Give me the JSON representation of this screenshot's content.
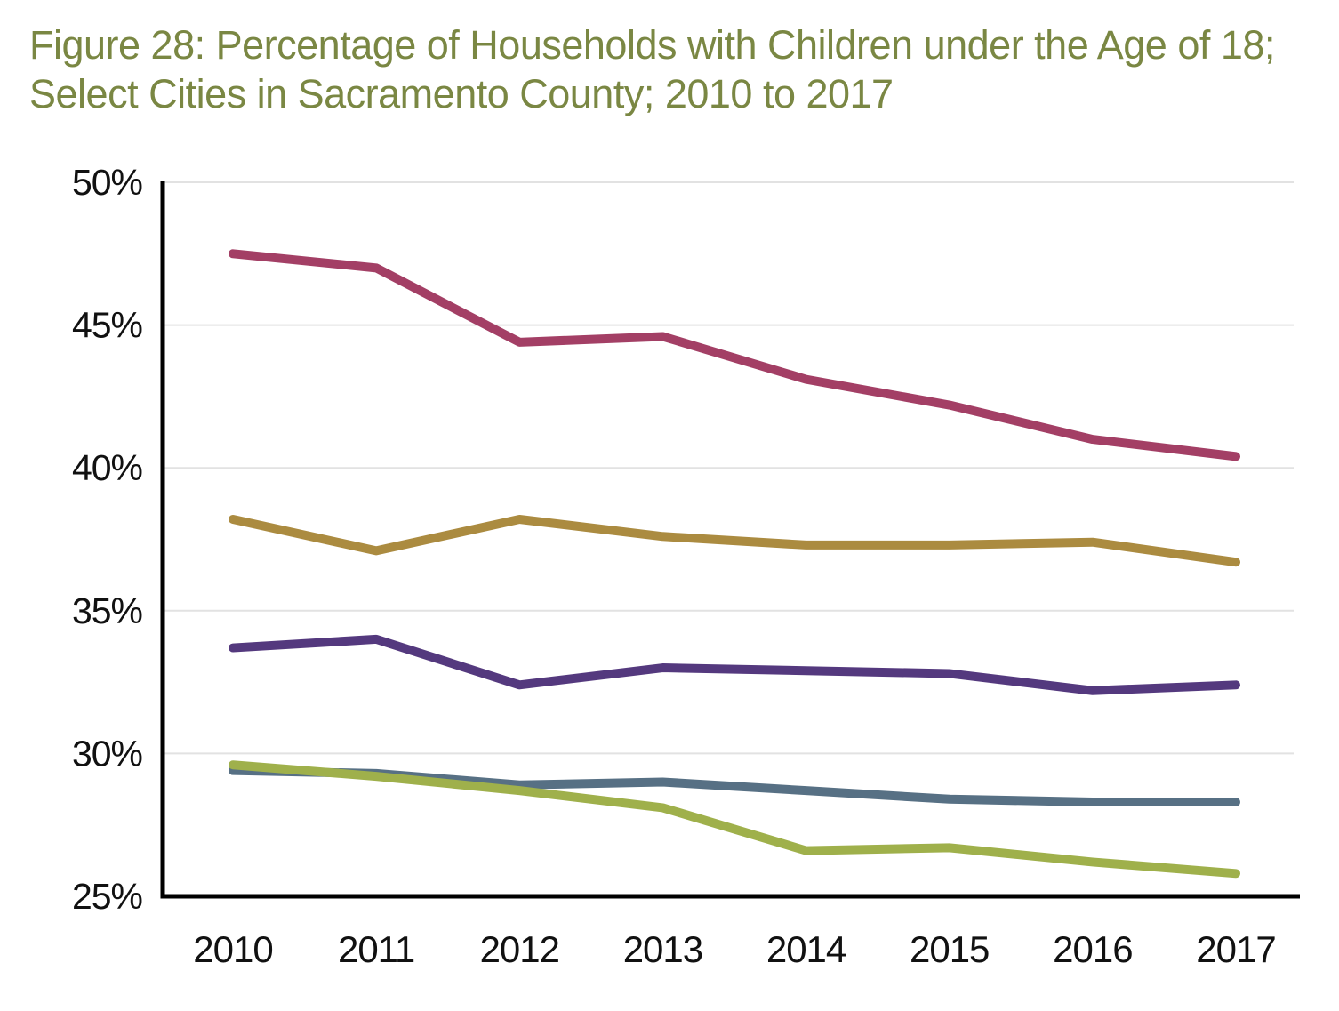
{
  "figure": {
    "title_line1": "Figure 28: Percentage of Households with Children under the Age of 18;",
    "title_line2": "Select Cities in Sacramento County; 2010 to 2017",
    "title_color": "#7a8743"
  },
  "chart_data": {
    "type": "line",
    "title": "Figure 28: Percentage of Households with Children under the Age of 18; Select Cities in Sacramento County; 2010 to 2017",
    "categories": [
      "2010",
      "2011",
      "2012",
      "2013",
      "2014",
      "2015",
      "2016",
      "2017"
    ],
    "series": [
      {
        "name": "maroon-line",
        "color": "#a33f65",
        "values": [
          47.5,
          47.0,
          44.4,
          44.6,
          43.1,
          42.2,
          41.0,
          40.4
        ]
      },
      {
        "name": "gold-line",
        "color": "#ab8b40",
        "values": [
          38.2,
          37.1,
          38.2,
          37.6,
          37.3,
          37.3,
          37.4,
          36.7
        ]
      },
      {
        "name": "purple-line",
        "color": "#54397e",
        "values": [
          33.7,
          34.0,
          32.4,
          33.0,
          32.9,
          32.8,
          32.2,
          32.4
        ]
      },
      {
        "name": "slate-blue-line",
        "color": "#577084",
        "values": [
          29.4,
          29.3,
          28.9,
          29.0,
          28.7,
          28.4,
          28.3,
          28.3
        ]
      },
      {
        "name": "green-line",
        "color": "#9fb04b",
        "values": [
          29.6,
          29.2,
          28.7,
          28.1,
          26.6,
          26.7,
          26.2,
          25.8
        ]
      }
    ],
    "ylim": [
      25,
      50
    ],
    "yticks": [
      {
        "value": 50,
        "label": "50%"
      },
      {
        "value": 45,
        "label": "45%"
      },
      {
        "value": 40,
        "label": "40%"
      },
      {
        "value": 35,
        "label": "35%"
      },
      {
        "value": 30,
        "label": "30%"
      },
      {
        "value": 25,
        "label": "25%"
      }
    ],
    "xlabel": "",
    "ylabel": "",
    "grid": "horizontal",
    "legend_position": "none",
    "axis_color": "#000000",
    "gridline_color": "#e2e2e2",
    "background_color": "#ffffff",
    "tick_label_color": "#111111"
  }
}
